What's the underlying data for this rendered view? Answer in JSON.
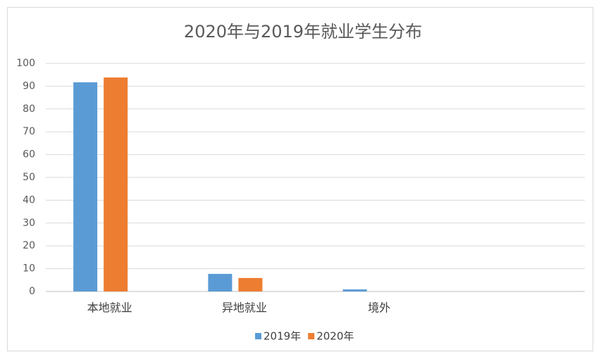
{
  "chart_data": {
    "type": "bar",
    "title": "2020年与2019年就业学生分布",
    "categories": [
      "本地就业",
      "异地就业",
      "境外",
      null
    ],
    "series": [
      {
        "name": "2019年",
        "color": "#5b9bd5",
        "values": [
          91.7,
          7.7,
          0.9,
          null
        ]
      },
      {
        "name": "2020年",
        "color": "#ed7d31",
        "values": [
          93.8,
          5.9,
          0,
          null
        ]
      }
    ],
    "ylim": [
      0,
      100
    ],
    "yticks": [
      0,
      10,
      20,
      30,
      40,
      50,
      60,
      70,
      80,
      90,
      100
    ],
    "grid": true,
    "legend": "bottom"
  }
}
